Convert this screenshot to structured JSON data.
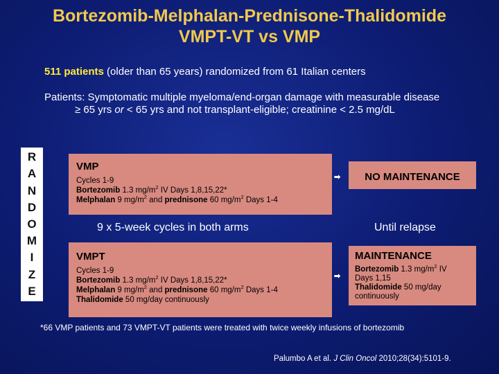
{
  "title": {
    "line1": "Bortezomib-Melphalan-Prednisone-Thalidomide",
    "line2": "VMPT-VT vs VMP"
  },
  "study": {
    "patients_bold": "511 patients",
    "patients_rest": " (older than 65 years) randomized from 61 Italian centers"
  },
  "eligibility": {
    "line1": "Patients: Symptomatic multiple myeloma/end-organ damage with measurable disease",
    "line2_pre": "≥ 65 yrs ",
    "line2_or": "or",
    "line2_post": " < 65 yrs and not transplant-eligible; creatinine < 2.5 mg/dL"
  },
  "randomize_letters": [
    "R",
    "A",
    "N",
    "D",
    "O",
    "M",
    "I",
    "Z",
    "E"
  ],
  "vmp": {
    "title": "VMP",
    "cycles": "Cycles 1-9",
    "bortezomib_name": "Bortezomib",
    "bortezomib_dose": " 1.3 mg/m",
    "bortezomib_sup": "2",
    "bortezomib_schedule": " IV Days 1,8,15,22*",
    "melphalan_name": "Melphalan",
    "melphalan_dose": " 9 mg/m",
    "melphalan_sup": "2",
    "melphalan_and": " and ",
    "prednisone_name": "prednisone",
    "prednisone_dose": " 60 mg/m",
    "prednisone_sup": "2",
    "prednisone_schedule": " Days 1-4"
  },
  "vmpt": {
    "title": "VMPT",
    "cycles": "Cycles 1-9",
    "bortezomib_name": "Bortezomib",
    "bortezomib_dose": " 1.3 mg/m",
    "bortezomib_sup": "2",
    "bortezomib_schedule": " IV Days 1,8,15,22*",
    "melphalan_name": "Melphalan",
    "melphalan_dose": " 9 mg/m",
    "melphalan_sup": "2",
    "melphalan_and": " and ",
    "prednisone_name": "prednisone",
    "prednisone_dose": " 60 mg/m",
    "prednisone_sup": "2",
    "prednisone_schedule": " Days 1-4",
    "thalidomide_name": "Thalidomide",
    "thalidomide_schedule": " 50 mg/day continuously"
  },
  "middle": {
    "cycles_both": "9 x 5-week cycles in both arms",
    "until_relapse": "Until relapse"
  },
  "no_maintenance": "NO MAINTENANCE",
  "maintenance": {
    "title": "MAINTENANCE",
    "bortezomib_name": "Bortezomib",
    "bortezomib_dose": " 1.3 mg/m",
    "bortezomib_sup": "2",
    "bortezomib_route": " IV",
    "bortezomib_days": "Days 1,15",
    "thalidomide_name": "Thalidomide",
    "thalidomide_dose": " 50 mg/day",
    "thalidomide_schedule": "continuously"
  },
  "arrow_glyph": "➡",
  "footnote": "*66 VMP patients and 73 VMPT-VT patients were treated with twice weekly infusions of bortezomib",
  "citation": {
    "authors": "Palumbo A et al. ",
    "journal": "J Clin Oncol",
    "details": " 2010;28(34):5101-9."
  },
  "colors": {
    "background": "#0b1a6e",
    "title": "#f2c94c",
    "highlight": "#ffeb3b",
    "box_fill": "#d88a80"
  }
}
